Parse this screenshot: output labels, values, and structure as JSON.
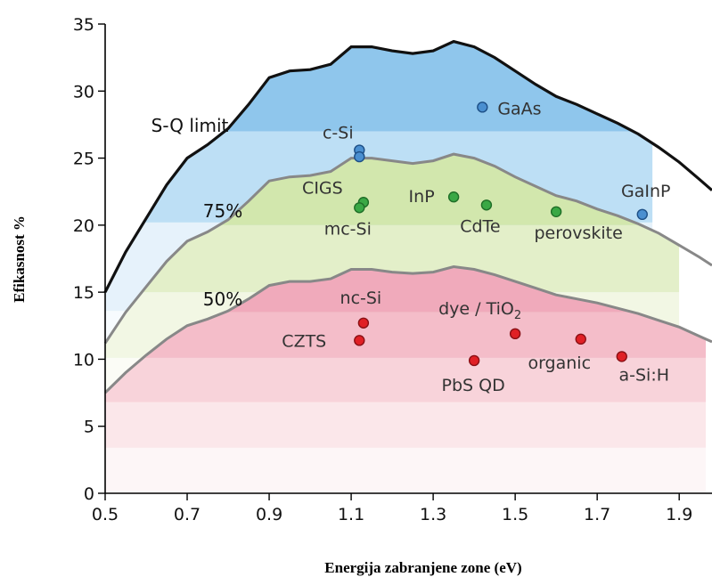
{
  "chart_data": {
    "type": "area",
    "xlabel": "Energija zabranjene zone (eV)",
    "ylabel": "Efikasnost %",
    "xlim": [
      0.5,
      1.98
    ],
    "ylim": [
      0,
      35
    ],
    "xticks": [
      "0.5",
      "0.7",
      "0.9",
      "1.1",
      "1.3",
      "1.5",
      "1.7",
      "1.9"
    ],
    "yticks": [
      "0",
      "5",
      "10",
      "15",
      "20",
      "25",
      "30",
      "35"
    ],
    "grid": false,
    "colors": {
      "blue": "#4a8fd0",
      "green": "#3aa845",
      "red": "#e02025",
      "curve": "#111111",
      "curve_gray": "#888888"
    },
    "series": [
      {
        "name": "S-Q limit",
        "x": [
          0.5,
          0.55,
          0.6,
          0.65,
          0.7,
          0.75,
          0.8,
          0.85,
          0.9,
          0.95,
          1.0,
          1.05,
          1.1,
          1.15,
          1.2,
          1.25,
          1.3,
          1.35,
          1.4,
          1.45,
          1.5,
          1.55,
          1.6,
          1.65,
          1.7,
          1.75,
          1.8,
          1.85,
          1.9,
          1.95,
          1.98
        ],
        "y": [
          15.0,
          18.0,
          20.5,
          23.0,
          25.0,
          26.0,
          27.2,
          29.0,
          31.0,
          31.5,
          31.6,
          32.0,
          33.3,
          33.3,
          33.0,
          32.8,
          33.0,
          33.7,
          33.3,
          32.5,
          31.5,
          30.5,
          29.6,
          29.0,
          28.3,
          27.6,
          26.8,
          25.8,
          24.7,
          23.4,
          22.6
        ]
      },
      {
        "name": "75%",
        "x": [
          0.5,
          0.55,
          0.6,
          0.65,
          0.7,
          0.75,
          0.8,
          0.85,
          0.9,
          0.95,
          1.0,
          1.05,
          1.1,
          1.15,
          1.2,
          1.25,
          1.3,
          1.35,
          1.4,
          1.45,
          1.5,
          1.55,
          1.6,
          1.65,
          1.7,
          1.75,
          1.8,
          1.85,
          1.9,
          1.95,
          1.98
        ],
        "y": [
          11.2,
          13.5,
          15.4,
          17.3,
          18.8,
          19.5,
          20.4,
          21.8,
          23.3,
          23.6,
          23.7,
          24.0,
          25.0,
          25.0,
          24.8,
          24.6,
          24.8,
          25.3,
          25.0,
          24.4,
          23.6,
          22.9,
          22.2,
          21.8,
          21.2,
          20.7,
          20.1,
          19.4,
          18.5,
          17.6,
          17.0
        ]
      },
      {
        "name": "50%",
        "x": [
          0.5,
          0.55,
          0.6,
          0.65,
          0.7,
          0.75,
          0.8,
          0.85,
          0.9,
          0.95,
          1.0,
          1.05,
          1.1,
          1.15,
          1.2,
          1.25,
          1.3,
          1.35,
          1.4,
          1.45,
          1.5,
          1.55,
          1.6,
          1.65,
          1.7,
          1.75,
          1.8,
          1.85,
          1.9,
          1.95,
          1.98
        ],
        "y": [
          7.5,
          9.0,
          10.3,
          11.5,
          12.5,
          13.0,
          13.6,
          14.5,
          15.5,
          15.8,
          15.8,
          16.0,
          16.7,
          16.7,
          16.5,
          16.4,
          16.5,
          16.9,
          16.7,
          16.3,
          15.8,
          15.3,
          14.8,
          14.5,
          14.2,
          13.8,
          13.4,
          12.9,
          12.4,
          11.7,
          11.3
        ]
      }
    ],
    "points": [
      {
        "label": "GaAs",
        "x": 1.42,
        "y": 28.8,
        "color": "blue"
      },
      {
        "label": "c-Si",
        "x": 1.12,
        "y": 25.6,
        "color": "blue"
      },
      {
        "label": "",
        "x": 1.12,
        "y": 25.1,
        "color": "blue"
      },
      {
        "label": "GaInP",
        "x": 1.81,
        "y": 20.8,
        "color": "blue"
      },
      {
        "label": "CIGS",
        "x": 1.13,
        "y": 21.7,
        "color": "green"
      },
      {
        "label": "mc-Si",
        "x": 1.12,
        "y": 21.3,
        "color": "green"
      },
      {
        "label": "InP",
        "x": 1.35,
        "y": 22.1,
        "color": "green"
      },
      {
        "label": "CdTe",
        "x": 1.43,
        "y": 21.5,
        "color": "green"
      },
      {
        "label": "perovskite",
        "x": 1.6,
        "y": 21.0,
        "color": "green"
      },
      {
        "label": "nc-Si",
        "x": 1.13,
        "y": 12.7,
        "color": "red"
      },
      {
        "label": "CZTS",
        "x": 1.12,
        "y": 11.4,
        "color": "red"
      },
      {
        "label": "dye / TiO",
        "x": 1.5,
        "y": 11.9,
        "color": "red"
      },
      {
        "label": "PbS QD",
        "x": 1.4,
        "y": 9.9,
        "color": "red"
      },
      {
        "label": "organic",
        "x": 1.66,
        "y": 11.5,
        "color": "red"
      },
      {
        "label": "a-Si:H",
        "x": 1.76,
        "y": 10.2,
        "color": "red"
      }
    ],
    "dye_subscript": "2"
  }
}
